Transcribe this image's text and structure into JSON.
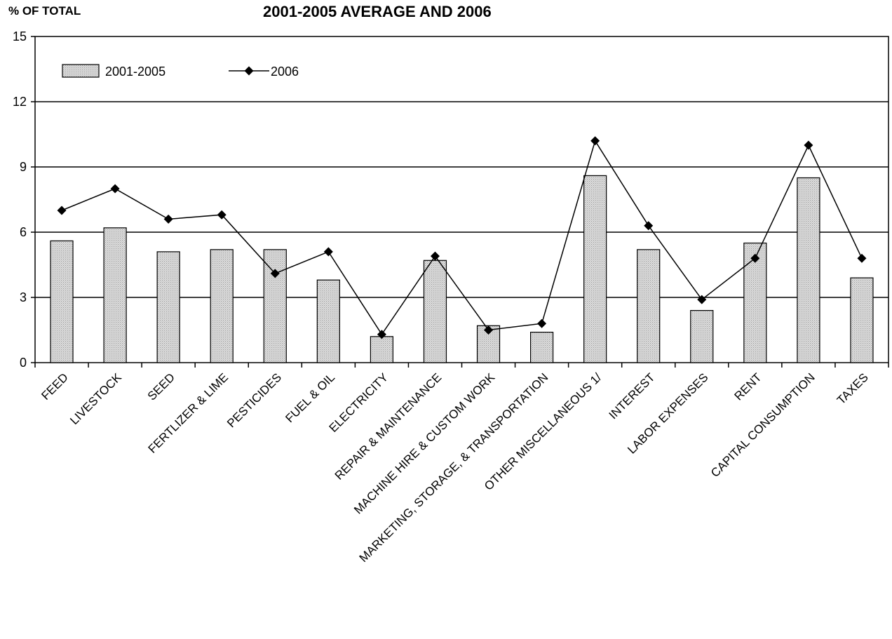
{
  "chart_data": {
    "type": "bar",
    "title": "2001-2005 AVERAGE AND 2006",
    "ylabel": "% OF TOTAL",
    "xlabel": "",
    "ylim": [
      0,
      15
    ],
    "yticks": [
      0,
      3,
      6,
      9,
      12,
      15
    ],
    "grid": true,
    "legend_position": "top-left",
    "categories": [
      "FEED",
      "LIVESTOCK",
      "SEED",
      "FERTLIZER & LIME",
      "PESTICIDES",
      "FUEL & OIL",
      "ELECTRICITY",
      "REPAIR & MAINTENANCE",
      "MACHINE HIRE & CUSTOM WORK",
      "MARKETING, STORAGE, & TRANSPORTATION",
      "OTHER MISCELLANEOUS  1/",
      "INTEREST",
      "LABOR EXPENSES",
      "RENT",
      "CAPITAL CONSUMPTION",
      "TAXES"
    ],
    "series": [
      {
        "name": "2001-2005",
        "type": "bar",
        "color": "#d4d4d4",
        "values": [
          5.6,
          6.2,
          5.1,
          5.2,
          5.2,
          3.8,
          1.2,
          4.7,
          1.7,
          1.4,
          8.6,
          5.2,
          2.4,
          5.5,
          8.5,
          3.9
        ]
      },
      {
        "name": "2006",
        "type": "line",
        "color": "#000000",
        "marker": "diamond",
        "values": [
          7.0,
          8.0,
          6.6,
          6.8,
          4.1,
          5.1,
          1.3,
          4.9,
          1.5,
          1.8,
          10.2,
          6.3,
          2.9,
          4.8,
          10.0,
          4.8
        ]
      }
    ]
  }
}
